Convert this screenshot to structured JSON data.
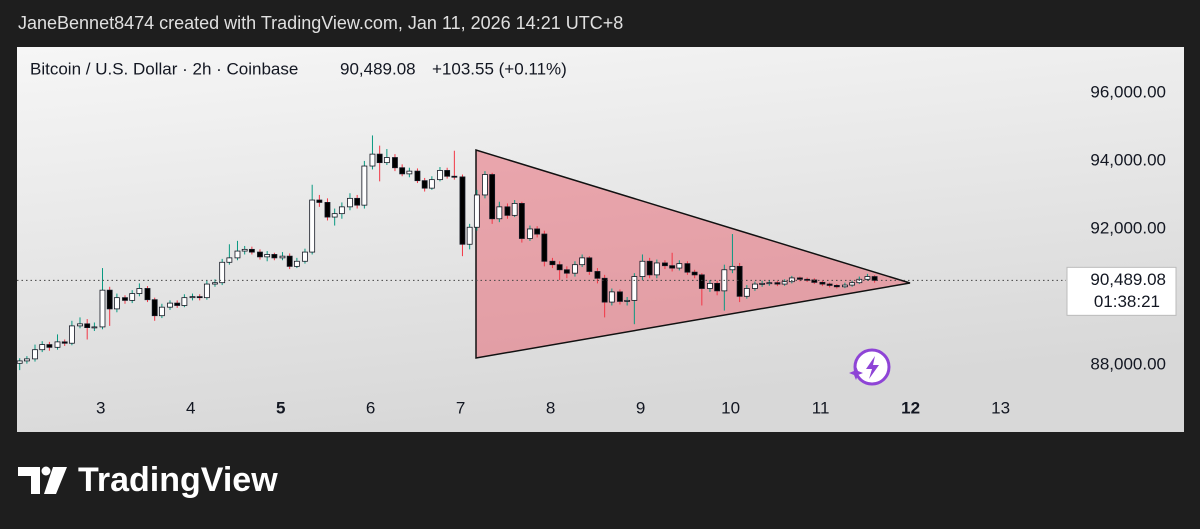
{
  "header": {
    "credit": "JaneBennet8474 created with TradingView.com, Jan 11, 2026 14:21 UTC+8"
  },
  "footer": {
    "brand": "TradingView"
  },
  "chart_data": {
    "type": "candlestick",
    "title": "Bitcoin / U.S. Dollar · 2h · Coinbase",
    "change_label": "+103.55 (+0.11%)",
    "last_price": {
      "value": 90489.08,
      "label": "90,489.08"
    },
    "countdown": "01:38:21",
    "x": [
      2.1,
      2.18,
      2.27,
      2.35,
      2.43,
      2.52,
      2.6,
      2.68,
      2.77,
      2.85,
      2.93,
      3.02,
      3.1,
      3.18,
      3.27,
      3.35,
      3.43,
      3.52,
      3.6,
      3.68,
      3.77,
      3.85,
      3.93,
      4.02,
      4.1,
      4.18,
      4.27,
      4.35,
      4.43,
      4.52,
      4.6,
      4.68,
      4.77,
      4.85,
      4.93,
      5.02,
      5.1,
      5.18,
      5.27,
      5.35,
      5.43,
      5.52,
      5.6,
      5.68,
      5.77,
      5.85,
      5.93,
      6.02,
      6.1,
      6.18,
      6.27,
      6.35,
      6.43,
      6.52,
      6.6,
      6.68,
      6.77,
      6.85,
      6.93,
      7.02,
      7.1,
      7.18,
      7.27,
      7.35,
      7.43,
      7.52,
      7.6,
      7.68,
      7.77,
      7.85,
      7.93,
      8.02,
      8.1,
      8.18,
      8.27,
      8.35,
      8.43,
      8.52,
      8.6,
      8.68,
      8.77,
      8.85,
      8.93,
      9.02,
      9.1,
      9.18,
      9.27,
      9.35,
      9.43,
      9.52,
      9.6,
      9.68,
      9.77,
      9.85,
      9.93,
      10.02,
      10.1,
      10.18,
      10.27,
      10.35,
      10.43,
      10.52,
      10.6,
      10.68,
      10.77,
      10.85,
      10.93,
      11.02,
      11.1,
      11.18,
      11.27,
      11.35,
      11.43,
      11.52,
      11.6
    ],
    "open": [
      88050,
      88120,
      88180,
      88450,
      88600,
      88520,
      88680,
      88640,
      89150,
      89210,
      89100,
      89120,
      90200,
      89650,
      89980,
      89900,
      90100,
      90250,
      89920,
      89450,
      89700,
      89820,
      89750,
      89980,
      90010,
      89980,
      90380,
      90420,
      91020,
      91150,
      91350,
      91400,
      91320,
      91180,
      91250,
      91150,
      91200,
      90900,
      91050,
      91320,
      92850,
      92780,
      92350,
      92450,
      92650,
      92900,
      92700,
      93850,
      94200,
      93950,
      94100,
      93800,
      93620,
      93700,
      93420,
      93200,
      93450,
      93720,
      93550,
      93530,
      91550,
      92050,
      93000,
      93600,
      92300,
      92650,
      92400,
      92750,
      91720,
      92000,
      91850,
      91050,
      90950,
      90800,
      90700,
      90950,
      91150,
      90750,
      90550,
      89850,
      90150,
      89870,
      89900,
      90600,
      91050,
      90650,
      91000,
      90920,
      90850,
      90980,
      90730,
      90650,
      90250,
      90400,
      90180,
      90800,
      90900,
      90020,
      90250,
      90380,
      90400,
      90420,
      90380,
      90450,
      90560,
      90520,
      90500,
      90430,
      90380,
      90340,
      90300,
      90350,
      90420,
      90520,
      90600
    ],
    "high": [
      88200,
      88260,
      88600,
      88700,
      88680,
      88900,
      88750,
      89300,
      89400,
      89350,
      89250,
      90850,
      90300,
      90100,
      90050,
      90200,
      90400,
      90320,
      89980,
      89800,
      89900,
      89900,
      90080,
      90100,
      90080,
      90480,
      90520,
      91120,
      91550,
      91650,
      91500,
      91480,
      91400,
      91350,
      91300,
      91320,
      91280,
      91150,
      91420,
      93300,
      93000,
      92900,
      92600,
      92780,
      93050,
      93000,
      94000,
      94750,
      94450,
      94350,
      94200,
      93900,
      93800,
      93780,
      93500,
      93550,
      93820,
      93800,
      94300,
      93600,
      92150,
      93150,
      93700,
      93650,
      92800,
      92750,
      92850,
      92800,
      92100,
      92080,
      91950,
      91150,
      91050,
      90900,
      91050,
      91250,
      91200,
      90850,
      90650,
      90250,
      90220,
      90000,
      90700,
      91250,
      91150,
      91100,
      91080,
      91300,
      91080,
      91050,
      90800,
      90700,
      90500,
      90480,
      90950,
      91850,
      91000,
      90350,
      90450,
      90480,
      90500,
      90470,
      90520,
      90620,
      90600,
      90570,
      90550,
      90480,
      90420,
      90380,
      90420,
      90480,
      90600,
      90680,
      90640
    ],
    "low": [
      87850,
      88040,
      88100,
      88380,
      88420,
      88450,
      88560,
      88580,
      89080,
      88750,
      89000,
      89050,
      89150,
      89550,
      89800,
      89820,
      90020,
      89850,
      89300,
      89380,
      89620,
      89680,
      89700,
      89900,
      89900,
      89920,
      90300,
      90350,
      90950,
      91080,
      91250,
      91250,
      91100,
      91050,
      91080,
      91080,
      90820,
      90850,
      90980,
      91250,
      92650,
      92250,
      92100,
      92300,
      92550,
      92600,
      92600,
      93750,
      93400,
      93880,
      93700,
      93550,
      93520,
      93350,
      93100,
      93150,
      93400,
      93480,
      93450,
      91200,
      91400,
      91950,
      92900,
      92150,
      92200,
      92300,
      92350,
      91600,
      91650,
      91750,
      90900,
      90850,
      90500,
      90550,
      90600,
      90880,
      90650,
      90400,
      89400,
      89750,
      89780,
      89750,
      89200,
      90500,
      90550,
      90550,
      90820,
      90750,
      90780,
      90650,
      90550,
      89750,
      90150,
      90050,
      89600,
      90700,
      89850,
      89950,
      90180,
      90300,
      90330,
      90320,
      90330,
      90400,
      90460,
      90440,
      90380,
      90320,
      90280,
      90250,
      90260,
      90300,
      90380,
      90480,
      90420
    ],
    "close": [
      88120,
      88180,
      88450,
      88600,
      88520,
      88680,
      88640,
      89150,
      89210,
      89100,
      89120,
      90200,
      89650,
      89980,
      89900,
      90100,
      90250,
      89920,
      89450,
      89700,
      89820,
      89750,
      89980,
      90010,
      89980,
      90380,
      90420,
      91020,
      91150,
      91350,
      91400,
      91320,
      91180,
      91250,
      91150,
      91200,
      90900,
      91050,
      91320,
      92850,
      92780,
      92350,
      92450,
      92650,
      92900,
      92700,
      93850,
      94200,
      93950,
      94100,
      93800,
      93620,
      93700,
      93420,
      93200,
      93450,
      93720,
      93550,
      93530,
      91550,
      92050,
      93000,
      93600,
      92300,
      92650,
      92400,
      92750,
      91720,
      92000,
      91850,
      91050,
      90950,
      90800,
      90700,
      90950,
      91150,
      90750,
      90550,
      89850,
      90150,
      89870,
      89900,
      90600,
      91050,
      90650,
      91000,
      90920,
      90850,
      90980,
      90730,
      90650,
      90250,
      90400,
      90180,
      90800,
      90900,
      90020,
      90250,
      90380,
      90400,
      90420,
      90380,
      90450,
      90560,
      90520,
      90500,
      90430,
      90380,
      90340,
      90300,
      90350,
      90420,
      90520,
      90600,
      90489.08
    ],
    "up_color": "#089981",
    "down_color": "#f23645",
    "up_body_color": "#ffffff",
    "down_body_color": "#000000",
    "xlim": [
      2.07,
      13.66
    ],
    "ylim": [
      86030,
      97350
    ],
    "xticks": [
      3,
      4,
      5,
      6,
      7,
      8,
      9,
      10,
      11,
      12,
      13
    ],
    "bold_xticks": [
      5,
      12
    ],
    "yticks": [
      {
        "value": 88000,
        "label": "88,000.00"
      },
      {
        "value": 92000,
        "label": "92,000.00"
      },
      {
        "value": 94000,
        "label": "94,000.00"
      },
      {
        "value": 96000,
        "label": "96,000.00"
      }
    ]
  }
}
